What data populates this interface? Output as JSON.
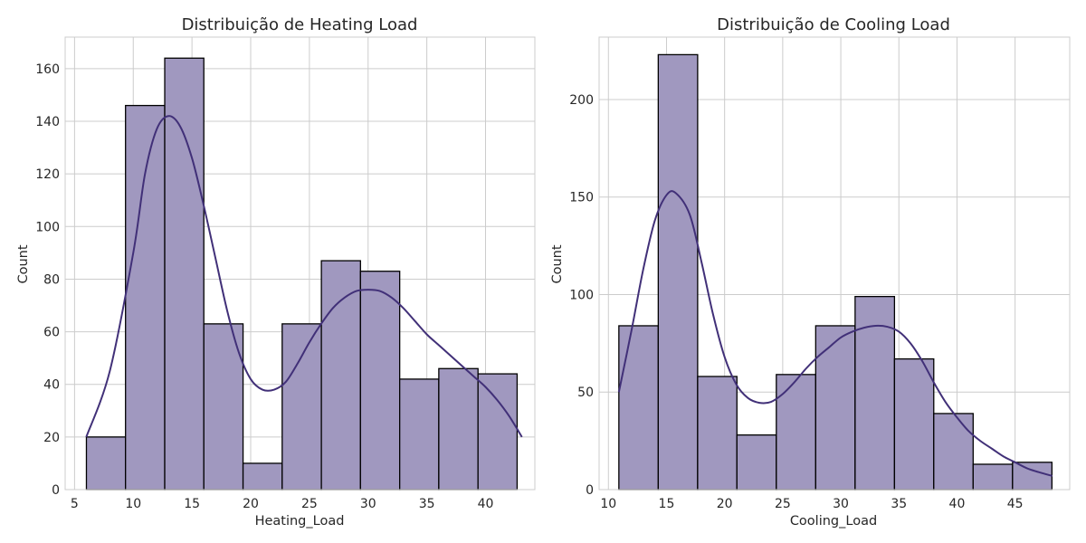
{
  "colors": {
    "bar_fill": "#a098bf",
    "kde_line": "#413078",
    "grid": "#cccccc",
    "text": "#262626"
  },
  "chart_data": [
    {
      "type": "bar",
      "title": "Distribuição de Heating Load",
      "xlabel": "Heating_Load",
      "ylabel": "Count",
      "grid": true,
      "xlim": [
        4.2,
        44.2
      ],
      "ylim": [
        0,
        172
      ],
      "xticks": [
        5,
        10,
        15,
        20,
        25,
        30,
        35,
        40
      ],
      "yticks": [
        0,
        20,
        40,
        60,
        80,
        100,
        120,
        140,
        160
      ],
      "bin_edges": [
        6.01,
        9.34,
        12.68,
        16.01,
        19.35,
        22.68,
        26.02,
        29.35,
        32.69,
        36.02,
        39.36,
        42.69
      ],
      "values": [
        20,
        146,
        164,
        63,
        10,
        63,
        87,
        83,
        42,
        46,
        44
      ],
      "kde": {
        "x": [
          6.0,
          8,
          10,
          11,
          12,
          13,
          14,
          15,
          16,
          17,
          18,
          19,
          20,
          21,
          22,
          23,
          24,
          25,
          26,
          27,
          28,
          29,
          30,
          31,
          32,
          33,
          34,
          35,
          36,
          37,
          38,
          39,
          40,
          41,
          42,
          43.1
        ],
        "y": [
          20,
          45,
          90,
          120,
          137,
          142,
          138,
          126,
          108,
          88,
          68,
          52,
          42,
          38,
          38,
          41,
          48,
          56,
          63,
          69,
          73,
          75.5,
          76,
          75.5,
          73,
          69,
          64,
          59,
          55,
          51,
          47,
          43,
          39,
          34,
          28,
          20
        ]
      }
    },
    {
      "type": "bar",
      "title": "Distribuição de Cooling Load",
      "xlabel": "Cooling_Load",
      "ylabel": "Count",
      "grid": true,
      "xlim": [
        9.2,
        49.7
      ],
      "ylim": [
        0,
        232
      ],
      "xticks": [
        10,
        15,
        20,
        25,
        30,
        35,
        40,
        45
      ],
      "yticks": [
        0,
        50,
        100,
        150,
        200
      ],
      "bin_edges": [
        10.9,
        14.29,
        17.68,
        21.06,
        24.45,
        27.84,
        31.23,
        34.62,
        38.0,
        41.39,
        44.78,
        48.17
      ],
      "values": [
        84,
        223,
        58,
        28,
        59,
        84,
        99,
        67,
        39,
        13,
        14
      ],
      "kde": {
        "x": [
          10.9,
          12,
          13,
          14,
          15,
          15.8,
          17,
          18,
          19,
          20,
          21,
          22,
          23,
          24,
          25,
          26,
          27,
          28,
          29,
          30,
          31,
          32,
          33,
          34,
          35,
          36,
          37,
          38,
          39,
          40,
          41,
          42,
          43,
          44,
          45,
          46,
          47,
          48.2
        ],
        "y": [
          50,
          82,
          113,
          138,
          151,
          152,
          141,
          117,
          90,
          68,
          54,
          47,
          44.5,
          45,
          49,
          55,
          62,
          68,
          73,
          78,
          81,
          83,
          84,
          83.5,
          81,
          75,
          66,
          55,
          45,
          37,
          30,
          25,
          21,
          17,
          14,
          11,
          9,
          7
        ]
      }
    }
  ]
}
